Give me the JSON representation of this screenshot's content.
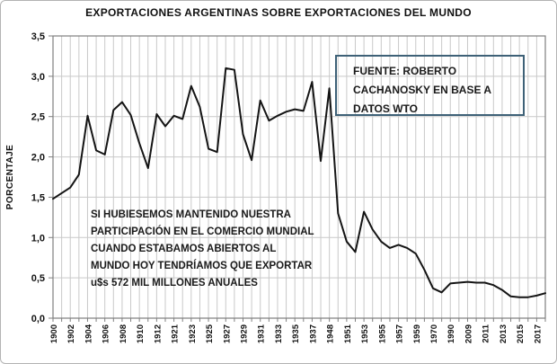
{
  "chart_data": {
    "type": "line",
    "title": "EXPORTACIONES ARGENTINAS SOBRE EXPORTACIONES DEL MUNDO",
    "ylabel": "PORCENTAJE",
    "xlabel": "",
    "categories": [
      "1900",
      "1901",
      "1902",
      "1903",
      "1904",
      "1905",
      "1906",
      "1907",
      "1908",
      "1909",
      "1910",
      "1911",
      "1912",
      "1913",
      "1921",
      "1922",
      "1923",
      "1924",
      "1925",
      "1926",
      "1927",
      "1928",
      "1929",
      "1930",
      "1931",
      "1932",
      "1933",
      "1934",
      "1935",
      "1936",
      "1937",
      "1938",
      "1948",
      "1949",
      "1951",
      "1952",
      "1953",
      "1954",
      "1955",
      "1956",
      "1957",
      "1958",
      "1959",
      "1960",
      "1970",
      "1980",
      "1990",
      "2000",
      "2009",
      "2010",
      "2011",
      "2012",
      "2013",
      "2014",
      "2015",
      "2016",
      "2017",
      "2018"
    ],
    "values": [
      1.48,
      1.55,
      1.62,
      1.78,
      2.51,
      2.08,
      2.03,
      2.58,
      2.68,
      2.52,
      2.17,
      1.86,
      2.53,
      2.38,
      2.51,
      2.47,
      2.88,
      2.62,
      2.1,
      2.06,
      3.1,
      3.08,
      2.28,
      1.96,
      2.7,
      2.45,
      2.51,
      2.56,
      2.59,
      2.57,
      2.93,
      1.95,
      2.85,
      1.3,
      0.95,
      0.82,
      1.32,
      1.1,
      0.95,
      0.87,
      0.91,
      0.87,
      0.8,
      0.6,
      0.37,
      0.32,
      0.43,
      0.44,
      0.45,
      0.44,
      0.44,
      0.41,
      0.35,
      0.27,
      0.26,
      0.26,
      0.28,
      0.31
    ],
    "ylim": [
      0,
      3.5
    ],
    "ytick_step": 0.5,
    "xtick_label_every": 2,
    "decimal_separator": ",",
    "grid": true,
    "legend": "none",
    "line_color": "#141414",
    "gridline_color": "#c9c9c9",
    "axis_color": "#7f7f7f",
    "annotations": {
      "source_box": {
        "text": "FUENTE: ROBERTO\nCACHANOSKY EN BASE A\nDATOS WTO",
        "border_color": "#3e6177"
      },
      "note": {
        "text": "SI HUBIESEMOS MANTENIDO NUESTRA\nPARTICIPACIÓN EN EL COMERCIO MUNDIAL\nCUANDO ESTABAMOS ABIERTOS AL\nMUNDO HOY TENDRÍAMOS QUE EXPORTAR\nu$s 572 MIL  MILLONES ANUALES"
      }
    }
  }
}
